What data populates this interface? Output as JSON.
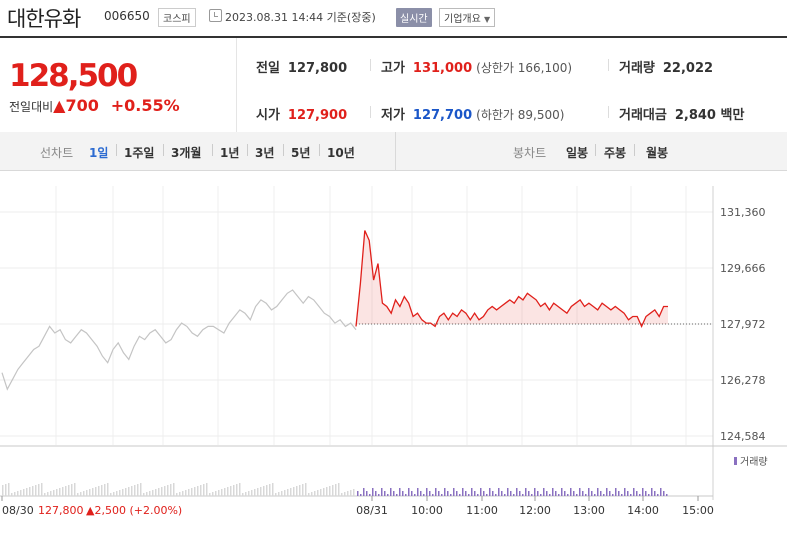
{
  "header": {
    "company": "대한유화",
    "code": "006650",
    "market": "코스피",
    "datetime": "2023.08.31 14:44 기준(장중)",
    "realtime": "실시간",
    "company_info": "기업개요"
  },
  "quote": {
    "price": "128,500",
    "change_label": "전일대비",
    "change_symbol": "▲",
    "change": "700",
    "change_pct": "+0.55%",
    "prev_close_label": "전일",
    "prev_close": "127,800",
    "high_label": "고가",
    "high": "131,000",
    "upper_limit": "(상한가 166,100)",
    "volume_label": "거래량",
    "volume": "22,022",
    "open_label": "시가",
    "open": "127,900",
    "low_label": "저가",
    "low": "127,700",
    "lower_limit": "(하한가 89,500)",
    "amount_label": "거래대금",
    "amount": "2,840 백만"
  },
  "tabs": {
    "line_chart": "선차트",
    "periods": [
      "1일",
      "1주일",
      "3개월",
      "1년",
      "3년",
      "5년",
      "10년"
    ],
    "active": "1일",
    "candle_chart": "봉차트",
    "candle_periods": [
      "일봉",
      "주봉",
      "월봉"
    ]
  },
  "colors": {
    "up": "#e0201b",
    "down": "#1a56c8",
    "volume": "#8a70c0",
    "prev_day": "#c4c4c4"
  },
  "chart_data": {
    "type": "line",
    "y_ticks": [
      131360,
      129666,
      127972,
      126278,
      124584
    ],
    "ylim": [
      124584,
      131360
    ],
    "baseline": 127972,
    "x_ticks": [
      "08/30",
      "08/31",
      "10:00",
      "11:00",
      "12:00",
      "13:00",
      "14:00",
      "15:00"
    ],
    "prev_day_label": "08/30",
    "prev_day_close": "127,800",
    "prev_day_change": "▲2,500 (+2.00%)",
    "volume_label": "거래량",
    "prev_day_series": [
      126500,
      126000,
      126300,
      126600,
      126800,
      127000,
      127200,
      127300,
      127600,
      127900,
      127700,
      127800,
      127500,
      127400,
      127600,
      127800,
      127700,
      127500,
      127300,
      127000,
      126800,
      127200,
      127400,
      127100,
      126900,
      127300,
      127600,
      127500,
      127700,
      127800,
      127600,
      127400,
      127500,
      127800,
      128000,
      127900,
      127700,
      127600,
      127800,
      127900,
      127900,
      127800,
      127700,
      128000,
      128200,
      128400,
      128300,
      128100,
      128500,
      128700,
      128600,
      128400,
      128500,
      128700,
      128900,
      129000,
      128800,
      128600,
      128800,
      128700,
      128500,
      128300,
      128200,
      128000,
      128100,
      127900,
      128000,
      127800
    ],
    "today_series": [
      127900,
      129200,
      130800,
      130500,
      129300,
      129800,
      128600,
      128500,
      128300,
      128700,
      128500,
      128800,
      128600,
      128200,
      128300,
      128100,
      128000,
      128000,
      127900,
      128200,
      128300,
      128100,
      128300,
      128200,
      128400,
      128300,
      128100,
      128300,
      128100,
      128200,
      128400,
      128500,
      128400,
      128500,
      128600,
      128700,
      128600,
      128800,
      128700,
      128900,
      128800,
      128700,
      128500,
      128600,
      128400,
      128600,
      128500,
      128400,
      128300,
      128500,
      128600,
      128700,
      128500,
      128600,
      128500,
      128400,
      128600,
      128500,
      128400,
      128500,
      128400,
      128300,
      128100,
      128200,
      128200,
      127900,
      128200,
      128300,
      128400,
      128200,
      128500,
      128500
    ]
  }
}
